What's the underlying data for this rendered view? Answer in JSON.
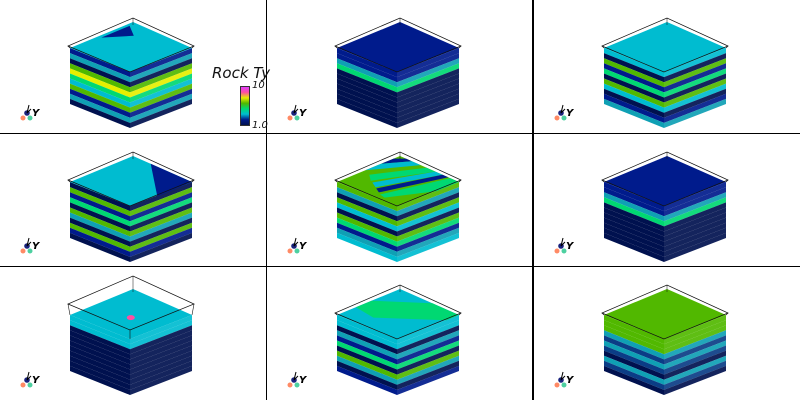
{
  "colors": {
    "c1": "#00114f",
    "c2": "#001b8c",
    "c3": "#00bcd0",
    "c4": "#00d872",
    "c5": "#51b800",
    "c6": "#e6ef00",
    "c7": "#ff4fa2",
    "c8": "#0fa0b4",
    "c9": "#0b3d86"
  },
  "colorbar": {
    "title": "Rock Ty",
    "max_label": "10",
    "min_label": "1.0"
  },
  "axes": {
    "y_label": "Y"
  },
  "panels": [
    {
      "top": "c3",
      "stripes": [
        {
          "color": "c2",
          "poly": [
            [
              0.05,
              0.55
            ],
            [
              0.28,
              0.25
            ],
            [
              0.05,
              0.1
            ]
          ]
        }
      ],
      "layers": [
        "c2",
        "c8",
        "c1",
        "c5",
        "c6",
        "c4",
        "c3",
        "c5",
        "c2",
        "c8",
        "c1"
      ]
    },
    {
      "top": "c2",
      "stripes": [],
      "layers": [
        "c2",
        "c2",
        "c8",
        "c4",
        "c1",
        "c1",
        "c1",
        "c1",
        "c1",
        "c1",
        "c1"
      ]
    },
    {
      "top": "c3",
      "stripes": [],
      "layers": [
        "c3",
        "c1",
        "c5",
        "c2",
        "c4",
        "c1",
        "c5",
        "c3",
        "c1",
        "c2",
        "c8"
      ]
    },
    {
      "top": "c3",
      "stripes": [
        {
          "color": "c2",
          "poly": [
            [
              0.3,
              0.0
            ],
            [
              1.0,
              0.0
            ],
            [
              1.0,
              0.55
            ]
          ]
        }
      ],
      "layers": [
        "c1",
        "c5",
        "c2",
        "c4",
        "c1",
        "c5",
        "c8",
        "c1",
        "c5",
        "c2",
        "c1"
      ]
    },
    {
      "top": "c5",
      "stripes": [
        {
          "color": "c2",
          "poly": [
            [
              0.0,
              0.1
            ],
            [
              0.1,
              0.0
            ],
            [
              0.2,
              0.0
            ],
            [
              0.0,
              0.3
            ]
          ]
        },
        {
          "color": "c3",
          "poly": [
            [
              0.2,
              0.0
            ],
            [
              0.35,
              0.0
            ],
            [
              0.0,
              0.55
            ],
            [
              0.0,
              0.3
            ]
          ]
        },
        {
          "color": "c4",
          "poly": [
            [
              0.45,
              0.0
            ],
            [
              0.6,
              0.0
            ],
            [
              0.25,
              0.7
            ],
            [
              0.12,
              0.6
            ]
          ]
        },
        {
          "color": "c3",
          "poly": [
            [
              0.6,
              0.0
            ],
            [
              0.72,
              0.0
            ],
            [
              0.42,
              0.78
            ],
            [
              0.3,
              0.72
            ]
          ]
        },
        {
          "color": "c2",
          "poly": [
            [
              0.72,
              0.0
            ],
            [
              0.82,
              0.0
            ],
            [
              0.55,
              0.85
            ],
            [
              0.45,
              0.8
            ]
          ]
        },
        {
          "color": "c4",
          "poly": [
            [
              0.85,
              0.0
            ],
            [
              1.0,
              0.0
            ],
            [
              1.0,
              0.35
            ],
            [
              0.7,
              0.9
            ],
            [
              0.6,
              0.88
            ]
          ]
        }
      ],
      "layers": [
        "c5",
        "c8",
        "c1",
        "c5",
        "c3",
        "c1",
        "c5",
        "c4",
        "c2",
        "c8",
        "c3"
      ]
    },
    {
      "top": "c2",
      "stripes": [],
      "layers": [
        "c2",
        "c2",
        "c8",
        "c4",
        "c1",
        "c1",
        "c1",
        "c1",
        "c1",
        "c1",
        "c1"
      ]
    },
    {
      "top": "c3",
      "stripes": [],
      "spot": {
        "color": "c7",
        "u": 0.55,
        "v": 0.55
      },
      "transparentTop": true,
      "layers": [
        "c3",
        "c3",
        "c1",
        "c1",
        "c1",
        "c1",
        "c1",
        "c1",
        "c1",
        "c1",
        "c1"
      ]
    },
    {
      "top": "c3",
      "stripes": [
        {
          "color": "c4",
          "poly": [
            [
              0.0,
              0.45
            ],
            [
              0.55,
              0.0
            ],
            [
              1.0,
              0.0
            ],
            [
              1.0,
              0.2
            ],
            [
              0.35,
              0.75
            ],
            [
              0.0,
              0.7
            ]
          ]
        }
      ],
      "layers": [
        "c3",
        "c3",
        "c1",
        "c8",
        "c2",
        "c4",
        "c1",
        "c5",
        "c8",
        "c1",
        "c2"
      ]
    },
    {
      "top": "c5",
      "stripes": [],
      "layers": [
        "c5",
        "c5",
        "c5",
        "c8",
        "c9",
        "c8",
        "c9",
        "c1",
        "c8",
        "c9",
        "c1"
      ]
    }
  ]
}
